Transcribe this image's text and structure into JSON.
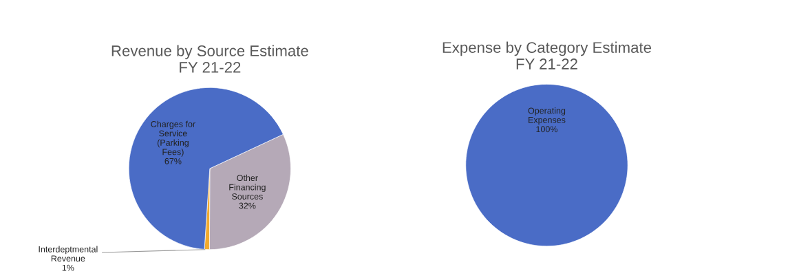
{
  "chart_data": [
    {
      "type": "pie",
      "title": "Revenue by Source Estimate\nFY 21-22",
      "categories": [
        "Other\nFinancing\nSources",
        "Interdeptmental\nRevenue",
        "Charges for\nService\n(Parking\nFees)"
      ],
      "values": [
        32,
        1,
        67
      ],
      "colors": [
        "#b5a9b7",
        "#f2aa2e",
        "#4a6cc6"
      ],
      "value_labels": [
        "32%",
        "1%",
        "67%"
      ]
    },
    {
      "type": "pie",
      "title": "Expense by Category Estimate\nFY 21-22",
      "categories": [
        "Operating\nExpenses"
      ],
      "values": [
        100
      ],
      "colors": [
        "#4a6cc6"
      ],
      "value_labels": [
        "100%"
      ]
    }
  ]
}
